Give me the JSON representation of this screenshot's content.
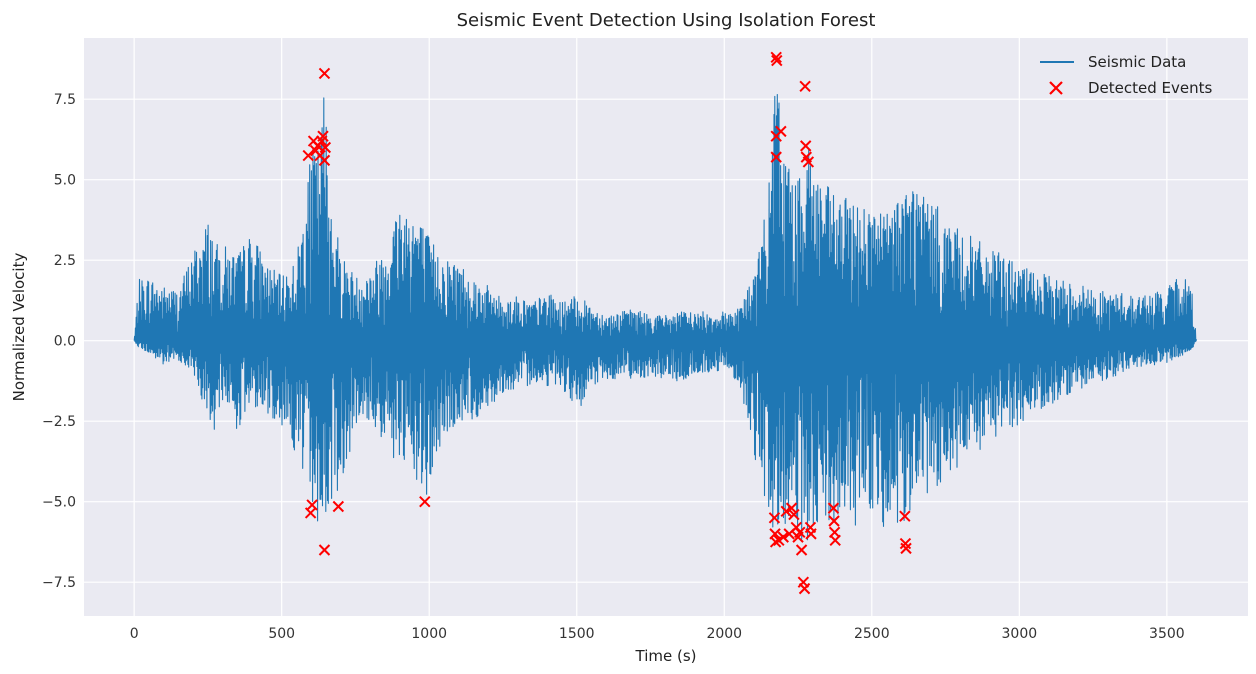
{
  "chart_data": {
    "type": "line",
    "title": "Seismic Event Detection Using Isolation Forest",
    "xlabel": "Time (s)",
    "ylabel": "Normalized Velocity",
    "xlim": [
      -170,
      3775
    ],
    "ylim": [
      -8.55,
      9.4
    ],
    "x_ticks": [
      0,
      500,
      1000,
      1500,
      2000,
      2500,
      3000,
      3500
    ],
    "x_tick_labels": [
      "0",
      "500",
      "1000",
      "1500",
      "2000",
      "2500",
      "3000",
      "3500"
    ],
    "y_ticks": [
      -7.5,
      -5.0,
      -2.5,
      0.0,
      2.5,
      5.0,
      7.5
    ],
    "y_tick_labels": [
      "−7.5",
      "−5.0",
      "−2.5",
      "0.0",
      "2.5",
      "5.0",
      "7.5"
    ],
    "grid": true,
    "legend_position": "top-right",
    "series": [
      {
        "name": "Seismic Data",
        "color": "#1f77b4",
        "envelope": {
          "time": [
            0,
            15,
            50,
            100,
            150,
            200,
            250,
            280,
            300,
            350,
            400,
            450,
            500,
            550,
            590,
            610,
            630,
            645,
            660,
            700,
            750,
            800,
            850,
            900,
            950,
            990,
            1050,
            1100,
            1150,
            1200,
            1250,
            1300,
            1350,
            1400,
            1450,
            1500,
            1550,
            1600,
            1650,
            1700,
            1750,
            1800,
            1850,
            1900,
            1950,
            2000,
            2050,
            2100,
            2150,
            2175,
            2200,
            2230,
            2260,
            2275,
            2300,
            2350,
            2400,
            2450,
            2500,
            2550,
            2610,
            2650,
            2700,
            2750,
            2800,
            2850,
            2900,
            2950,
            3000,
            3050,
            3100,
            3150,
            3200,
            3250,
            3300,
            3350,
            3400,
            3450,
            3500,
            3550,
            3590,
            3600
          ],
          "upper": [
            0,
            1.9,
            2,
            1.7,
            1.6,
            2.8,
            3.8,
            3.0,
            3.0,
            2.7,
            3.4,
            2.4,
            2.0,
            2.6,
            5.2,
            6.3,
            6.0,
            8.3,
            5.0,
            2.8,
            2.0,
            2.2,
            3.0,
            4.4,
            4.2,
            3.4,
            2.6,
            2.5,
            2.0,
            1.7,
            1.3,
            1.4,
            1.2,
            1.5,
            1.2,
            1.4,
            1.1,
            0.8,
            0.9,
            1.0,
            0.8,
            0.8,
            0.9,
            0.9,
            0.9,
            0.9,
            1.1,
            2.0,
            4.6,
            8.8,
            6.5,
            5.2,
            5.0,
            7.9,
            5.6,
            4.8,
            4.4,
            4.5,
            4.2,
            4.0,
            5.0,
            5.0,
            4.4,
            3.9,
            3.4,
            3.2,
            2.8,
            2.7,
            2.3,
            2.2,
            2.0,
            1.9,
            1.8,
            1.6,
            1.5,
            1.5,
            1.4,
            1.5,
            1.6,
            2.2,
            1.5,
            0
          ],
          "lower": [
            0,
            -0.2,
            -0.4,
            -0.8,
            -0.6,
            -1.0,
            -2.4,
            -4.0,
            -1.8,
            -2.8,
            -2.0,
            -2.3,
            -2.6,
            -3.6,
            -4.9,
            -5.3,
            -5.9,
            -6.5,
            -5.2,
            -4.5,
            -2.8,
            -2.5,
            -3.3,
            -4.0,
            -4.4,
            -5.0,
            -3.0,
            -2.6,
            -2.5,
            -2.1,
            -1.6,
            -1.6,
            -1.3,
            -1.4,
            -1.4,
            -2.5,
            -1.4,
            -1.3,
            -1.1,
            -1.2,
            -1.1,
            -1.2,
            -1.3,
            -1.1,
            -1.0,
            -0.9,
            -1.3,
            -3.5,
            -5.4,
            -6.2,
            -6.0,
            -5.8,
            -6.2,
            -7.7,
            -6.0,
            -6.1,
            -5.5,
            -5.8,
            -5.3,
            -6.0,
            -6.4,
            -4.6,
            -5.0,
            -4.6,
            -4.0,
            -3.7,
            -3.2,
            -2.8,
            -2.6,
            -2.2,
            -2.0,
            -1.8,
            -1.6,
            -1.3,
            -1.2,
            -1.0,
            -0.8,
            -0.8,
            -0.7,
            -0.5,
            -0.2,
            0
          ]
        }
      },
      {
        "name": "Detected Events",
        "color": "#ff0000",
        "marker": "x",
        "points": [
          {
            "x": 590,
            "y": 5.75
          },
          {
            "x": 598,
            "y": -5.35
          },
          {
            "x": 603,
            "y": -5.1
          },
          {
            "x": 608,
            "y": 6.2
          },
          {
            "x": 615,
            "y": 5.9
          },
          {
            "x": 622,
            "y": 6.05
          },
          {
            "x": 630,
            "y": 5.75
          },
          {
            "x": 636,
            "y": 6.2
          },
          {
            "x": 640,
            "y": 6.35
          },
          {
            "x": 645,
            "y": 5.6
          },
          {
            "x": 648,
            "y": 6.0
          },
          {
            "x": 645,
            "y": 8.3
          },
          {
            "x": 645,
            "y": -6.5
          },
          {
            "x": 692,
            "y": -5.15
          },
          {
            "x": 985,
            "y": -5.0
          },
          {
            "x": 2170,
            "y": -5.5
          },
          {
            "x": 2172,
            "y": -6.0
          },
          {
            "x": 2174,
            "y": -6.25
          },
          {
            "x": 2176,
            "y": 8.8
          },
          {
            "x": 2178,
            "y": 8.7
          },
          {
            "x": 2176,
            "y": 6.35
          },
          {
            "x": 2176,
            "y": 5.7
          },
          {
            "x": 2185,
            "y": -6.2
          },
          {
            "x": 2192,
            "y": 6.5
          },
          {
            "x": 2200,
            "y": -6.1
          },
          {
            "x": 2210,
            "y": -5.3
          },
          {
            "x": 2220,
            "y": -6.0
          },
          {
            "x": 2228,
            "y": -5.2
          },
          {
            "x": 2236,
            "y": -5.4
          },
          {
            "x": 2244,
            "y": -5.8
          },
          {
            "x": 2250,
            "y": -6.1
          },
          {
            "x": 2256,
            "y": -5.95
          },
          {
            "x": 2262,
            "y": -6.5
          },
          {
            "x": 2268,
            "y": -7.5
          },
          {
            "x": 2272,
            "y": -7.7
          },
          {
            "x": 2274,
            "y": 7.9
          },
          {
            "x": 2276,
            "y": 6.05
          },
          {
            "x": 2278,
            "y": 5.7
          },
          {
            "x": 2285,
            "y": 5.55
          },
          {
            "x": 2292,
            "y": -5.8
          },
          {
            "x": 2294,
            "y": -6.0
          },
          {
            "x": 2370,
            "y": -5.2
          },
          {
            "x": 2372,
            "y": -5.6
          },
          {
            "x": 2374,
            "y": -5.95
          },
          {
            "x": 2376,
            "y": -6.2
          },
          {
            "x": 2612,
            "y": -5.45
          },
          {
            "x": 2614,
            "y": -6.3
          },
          {
            "x": 2616,
            "y": -6.45
          }
        ]
      }
    ]
  }
}
